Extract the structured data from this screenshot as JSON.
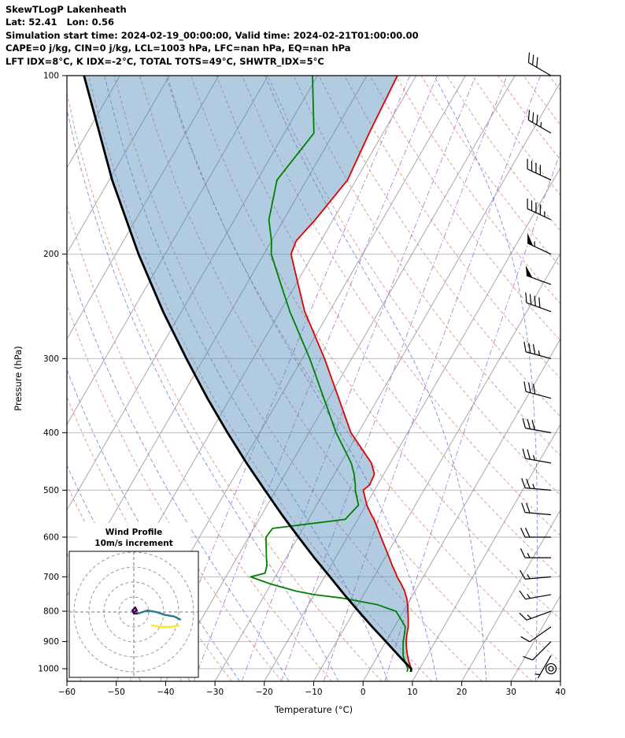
{
  "header": {
    "title": "SkewTLogP Lakenheath",
    "location": "Lat: 52.41   Lon: 0.56",
    "times": "Simulation start time: 2024-02-19_00:00:00, Valid time: 2024-02-21T01:00:00.00",
    "indices1": "CAPE=0 j/kg, CIN=0 j/kg, LCL=1003 hPa, LFC=nan hPa, EQ=nan hPa",
    "indices2": "LFT IDX=8°C, K IDX=-2°C, TOTAL TOTS=49°C, SHWTR_IDX=5°C"
  },
  "chart_data": {
    "type": "skewt-logp",
    "title": "SkewTLogP Lakenheath",
    "xlabel": "Temperature (°C)",
    "ylabel": "Pressure (hPa)",
    "xlim": [
      -60,
      40
    ],
    "x_ticks": [
      -60,
      -50,
      -40,
      -30,
      -20,
      -10,
      0,
      10,
      20,
      30,
      40
    ],
    "p_ticks": [
      100,
      200,
      300,
      400,
      500,
      600,
      700,
      800,
      900,
      1000
    ],
    "p_range": [
      100,
      1050
    ],
    "skew_shift_c_per_decade": 70.8,
    "grid": {
      "isotherms_c": {
        "min": -120,
        "max": 40,
        "step": 10
      },
      "dry_adiabats_theta_c": {
        "min": -60,
        "max": 190,
        "step": 10
      },
      "moist_adiabat_starts_c": [
        -45,
        -35,
        -25,
        -15,
        -5,
        5,
        15,
        25,
        35,
        45
      ],
      "mixing_ratio_g_kg": [
        0.1,
        0.2,
        0.5,
        1,
        2,
        5
      ]
    },
    "sounding": {
      "pressure_hpa": [
        1012,
        1000,
        975,
        950,
        925,
        900,
        875,
        850,
        825,
        800,
        780,
        760,
        750,
        740,
        720,
        700,
        690,
        670,
        650,
        600,
        580,
        560,
        550,
        530,
        500,
        490,
        470,
        450,
        400,
        350,
        300,
        250,
        225,
        200,
        190,
        175,
        150,
        125,
        100
      ],
      "temperature_c": [
        8.5,
        8.3,
        7.1,
        6.0,
        5.0,
        4.1,
        3.4,
        2.8,
        1.9,
        0.9,
        0.1,
        -0.9,
        -1.5,
        -2.1,
        -3.6,
        -5.3,
        -6.0,
        -7.6,
        -9.1,
        -13.2,
        -14.9,
        -16.7,
        -17.8,
        -19.8,
        -22.3,
        -21.6,
        -21.9,
        -23.8,
        -31.5,
        -38.0,
        -45.5,
        -55.0,
        -59.5,
        -64.5,
        -65.0,
        -63.6,
        -61.7,
        -62.8,
        -63.8
      ],
      "dewpoint_c": [
        7.8,
        7.6,
        6.3,
        5.1,
        4.3,
        3.5,
        2.9,
        2.2,
        0.4,
        -1.5,
        -6.0,
        -14.0,
        -20.0,
        -24.0,
        -30.0,
        -35.0,
        -32.5,
        -33.0,
        -34.0,
        -36.5,
        -36.2,
        -22.5,
        -22.2,
        -21.5,
        -23.9,
        -24.5,
        -26.0,
        -27.9,
        -34.5,
        -41.0,
        -48.5,
        -58.0,
        -63.0,
        -68.5,
        -70.0,
        -73.0,
        -76.0,
        -74.0,
        -81.0
      ]
    },
    "parcel": {
      "pressure_hpa": [
        1012,
        1000,
        950,
        900,
        850,
        800,
        750,
        700,
        650,
        600,
        550,
        500,
        450,
        400,
        350,
        300,
        250,
        200,
        150,
        100
      ],
      "temperature_c": [
        8.6,
        8.3,
        4.2,
        0.0,
        -4.5,
        -9.1,
        -13.9,
        -18.9,
        -24.3,
        -29.9,
        -35.9,
        -42.2,
        -49.1,
        -56.5,
        -64.6,
        -73.5,
        -83.7,
        -95.4,
        -109.4,
        -127.3
      ]
    },
    "winds": {
      "pressure_hpa": [
        100,
        125,
        150,
        175,
        200,
        225,
        250,
        300,
        350,
        400,
        450,
        500,
        550,
        600,
        650,
        700,
        750,
        800,
        850,
        900,
        950,
        1000
      ],
      "speed_kt": [
        30,
        35,
        40,
        45,
        55,
        50,
        40,
        35,
        30,
        30,
        25,
        25,
        20,
        20,
        15,
        15,
        15,
        15,
        10,
        10,
        5,
        0
      ],
      "direction_deg": [
        300,
        300,
        295,
        295,
        295,
        290,
        290,
        285,
        285,
        280,
        280,
        275,
        275,
        270,
        270,
        265,
        260,
        250,
        235,
        225,
        210,
        0
      ]
    },
    "colors": {
      "temperature": "#e50000",
      "dewpoint": "#008000",
      "parcel": "#000000",
      "shading": "#4682b4",
      "shading_opacity": 0.42,
      "isotherm": "#999999",
      "gridline": "#bbbbbb",
      "dry_adiabat": "#d98080",
      "moist_adiabat": "#5e74d6",
      "mixing_ratio": "#a55fd0",
      "barb": "#000000"
    }
  },
  "hodograph": {
    "title": "Wind Profile",
    "subtitle": "10m/s increment",
    "ring_increment_ms": 10,
    "rings_ms": [
      10,
      20,
      30,
      40
    ],
    "segments": [
      {
        "name": "low-level",
        "color": "#440154",
        "points": [
          [
            0,
            0
          ],
          [
            2,
            1
          ],
          [
            1,
            3
          ],
          [
            -1,
            1
          ],
          [
            0,
            -1
          ],
          [
            3,
            -1
          ]
        ]
      },
      {
        "name": "mid-level",
        "color": "#2a788e",
        "points": [
          [
            3,
            -1
          ],
          [
            9,
            1
          ],
          [
            15,
            0
          ],
          [
            21,
            -2
          ],
          [
            27,
            -3
          ],
          [
            31,
            -5
          ]
        ]
      },
      {
        "name": "upper-level",
        "color": "#fde725",
        "points": [
          [
            12,
            -9
          ],
          [
            18,
            -10
          ],
          [
            25,
            -10
          ],
          [
            30,
            -9
          ]
        ]
      }
    ]
  }
}
